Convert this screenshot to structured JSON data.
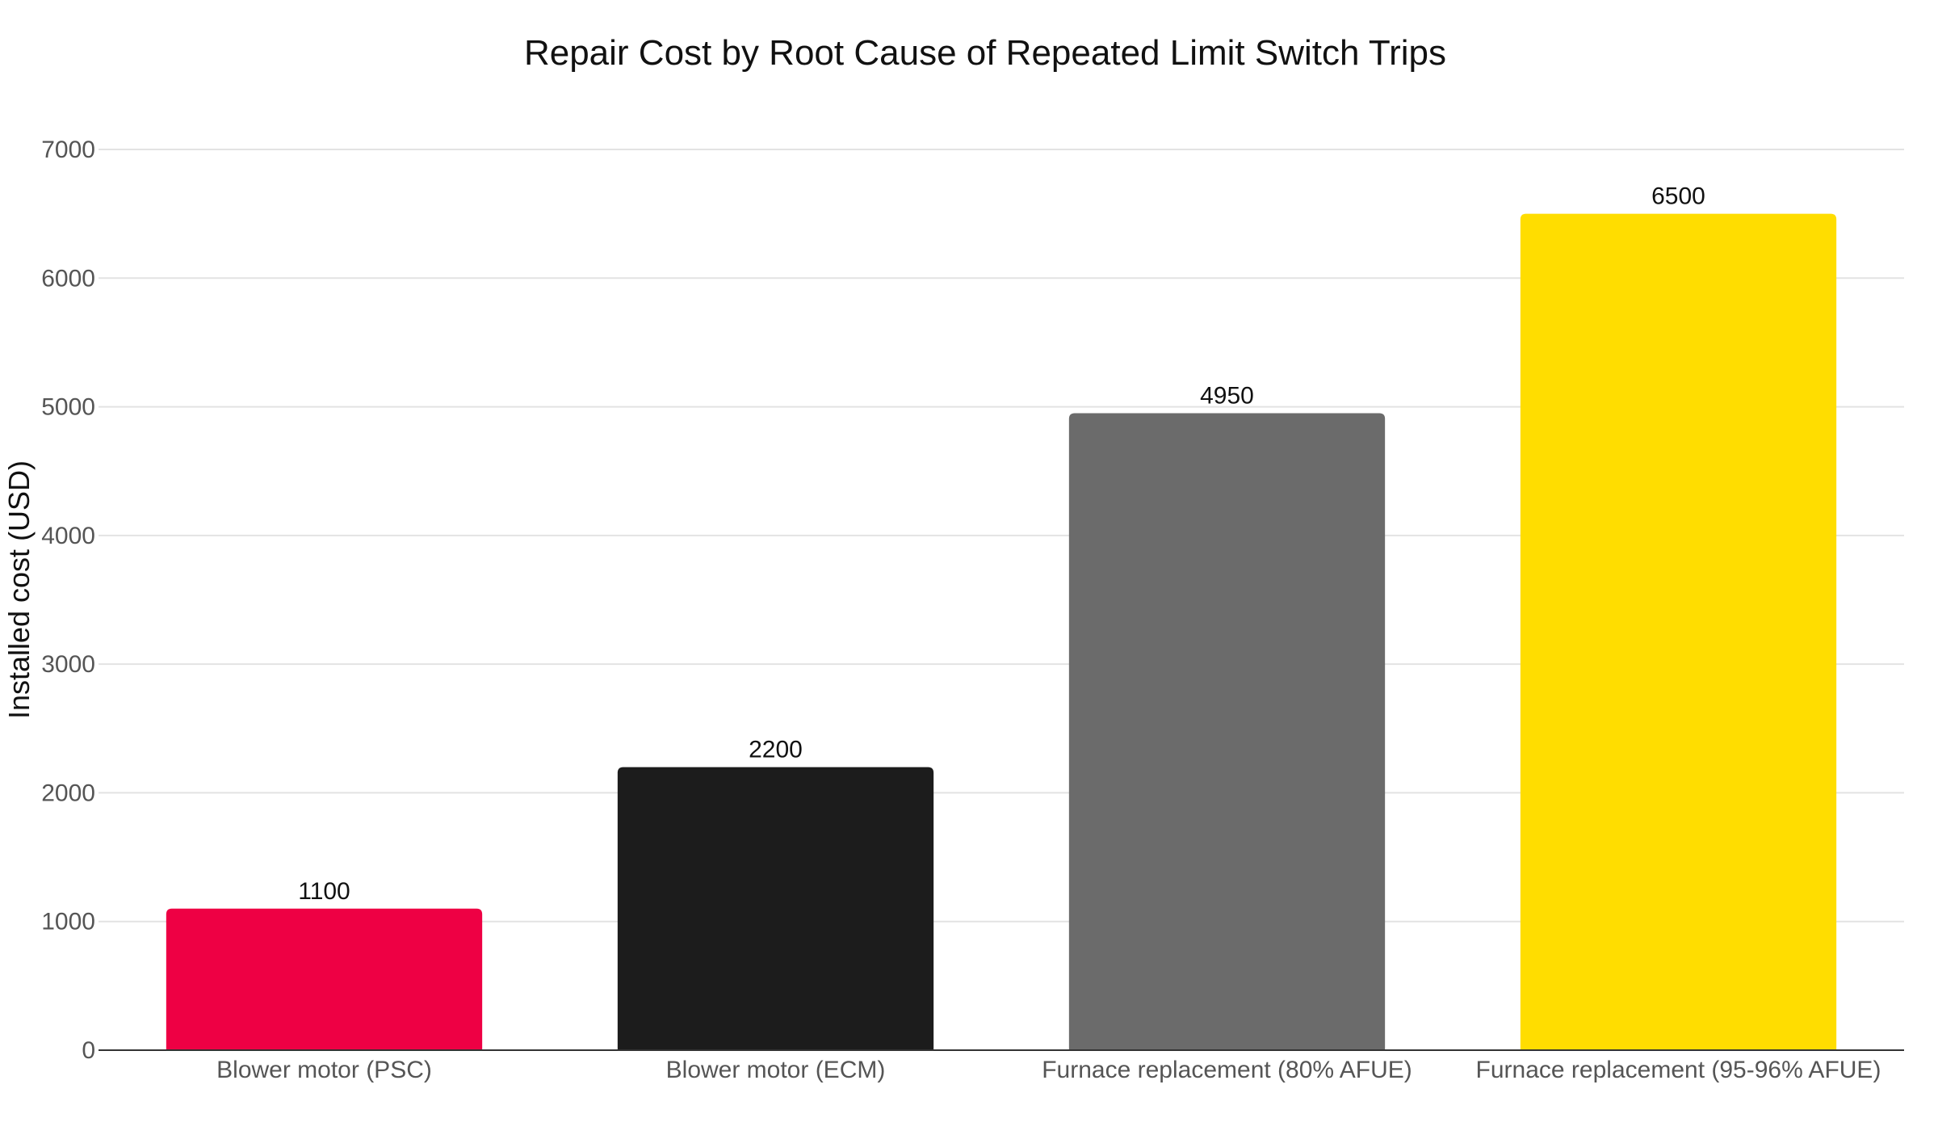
{
  "chart_data": {
    "type": "bar",
    "title": "Repair Cost by Root Cause of Repeated Limit Switch Trips",
    "xlabel": "",
    "ylabel": "Installed cost (USD)",
    "categories": [
      "Blower motor (PSC)",
      "Blower motor (ECM)",
      "Furnace replacement (80% AFUE)",
      "Furnace replacement (95-96% AFUE)"
    ],
    "values": [
      1100,
      2200,
      4950,
      6500
    ],
    "colors": [
      "#ee0044",
      "#1c1c1c",
      "#6b6b6b",
      "#ffdd00"
    ],
    "data_labels": [
      "1100",
      "2200",
      "4950",
      "6500"
    ],
    "ylim": [
      0,
      7000
    ],
    "yticks": [
      0,
      1000,
      2000,
      3000,
      4000,
      5000,
      6000,
      7000
    ],
    "ytick_labels": [
      "0",
      "1000",
      "2000",
      "3000",
      "4000",
      "5000",
      "6000",
      "7000"
    ],
    "grid": true,
    "legend": "none"
  }
}
